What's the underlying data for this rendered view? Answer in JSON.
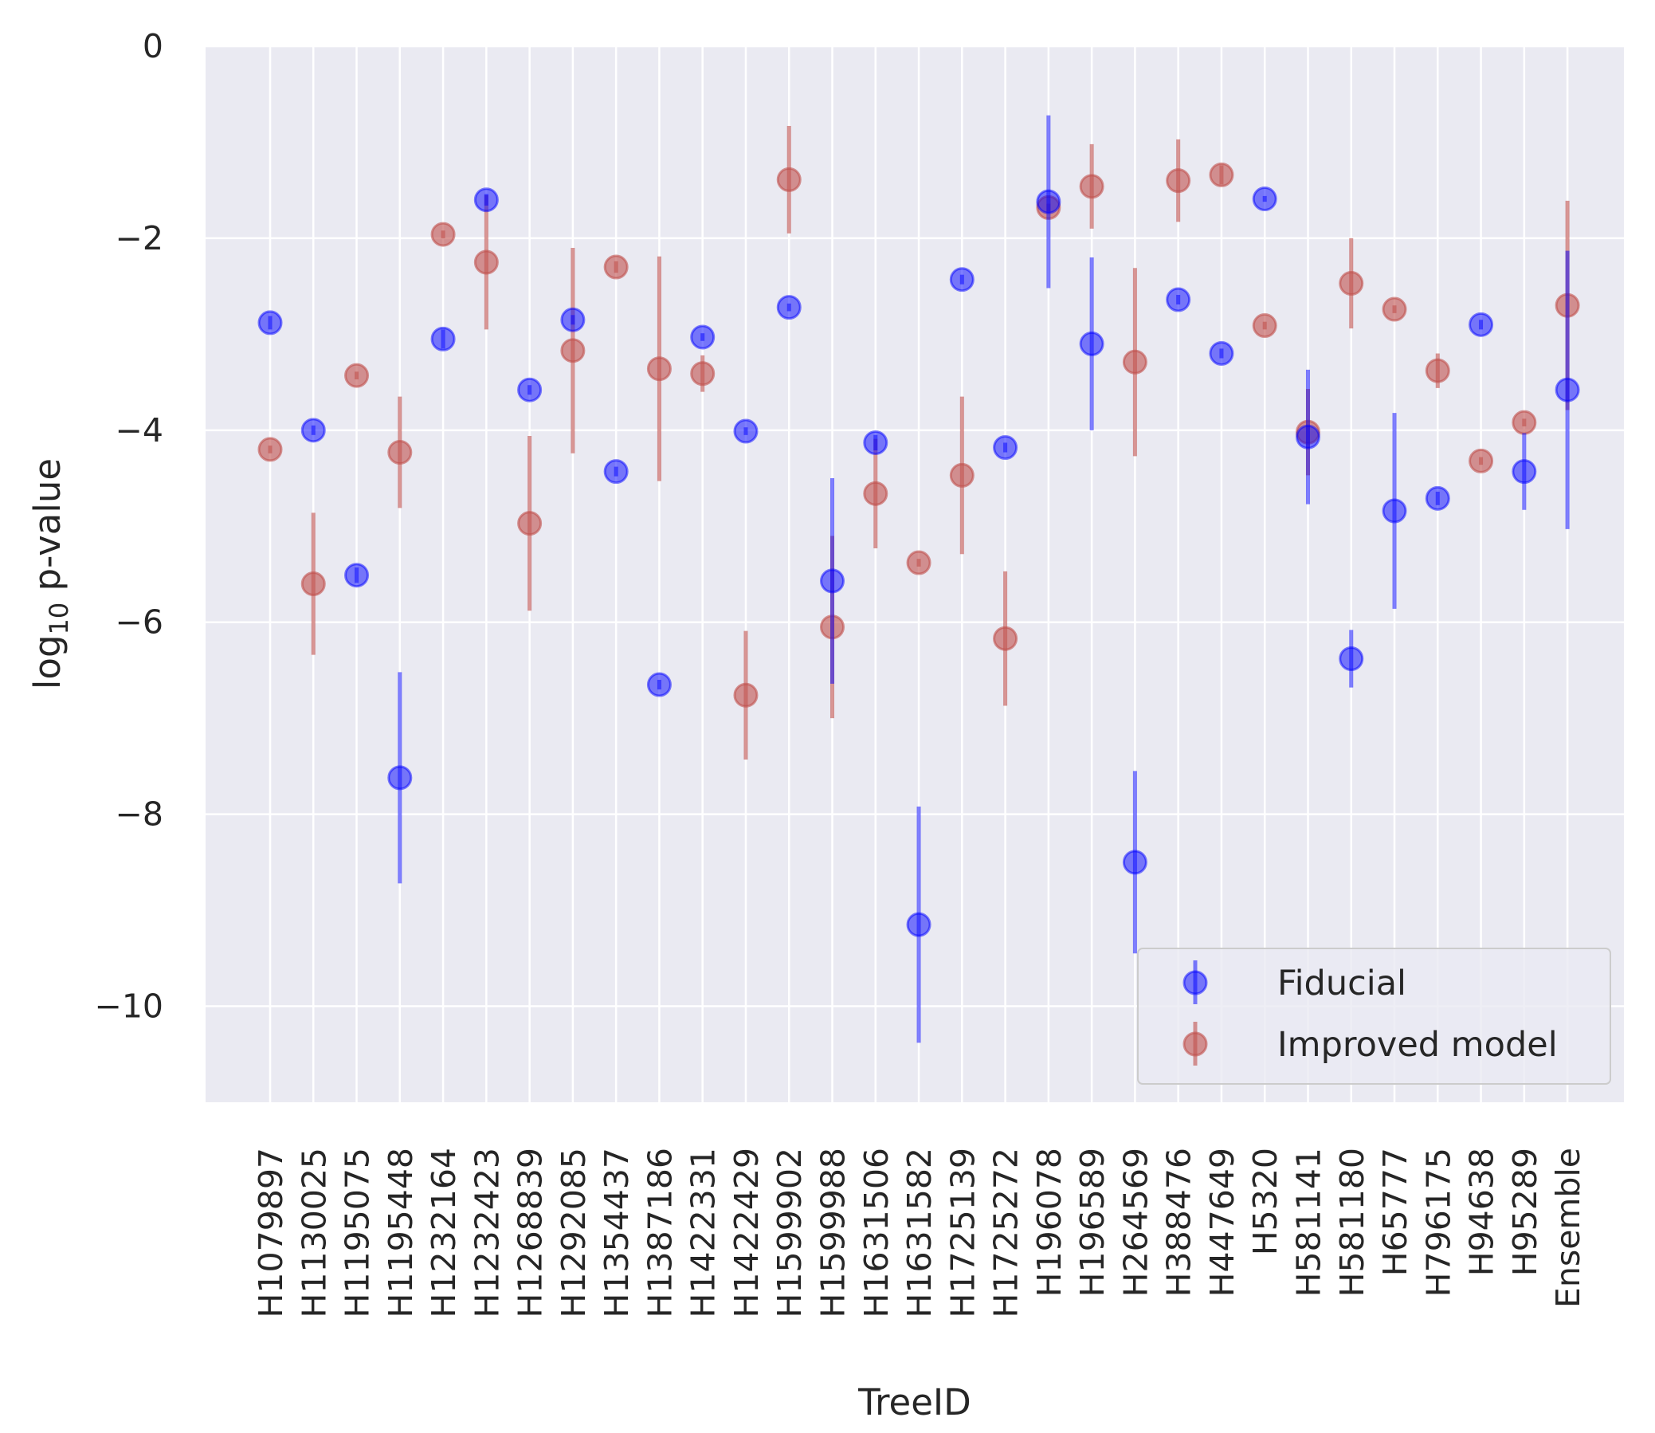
{
  "chart_data": {
    "type": "scatter",
    "title": "",
    "xlabel": "TreeID",
    "ylabel_main": "log",
    "ylabel_sub": "10",
    "ylabel_rest": " p-value",
    "ylim": [
      -11,
      0
    ],
    "yticks": [
      0,
      -2,
      -4,
      -6,
      -8,
      -10
    ],
    "ytick_labels": [
      "0",
      "−2",
      "−4",
      "−6",
      "−8",
      "−10"
    ],
    "legend_position": "lower-right",
    "categories": [
      "H1079897",
      "H1130025",
      "H1195075",
      "H1195448",
      "H1232164",
      "H1232423",
      "H1268839",
      "H1292085",
      "H1354437",
      "H1387186",
      "H1422331",
      "H1422429",
      "H1599902",
      "H1599988",
      "H1631506",
      "H1631582",
      "H1725139",
      "H1725272",
      "H196078",
      "H196589",
      "H264569",
      "H388476",
      "H447649",
      "H5320",
      "H581141",
      "H581180",
      "H65777",
      "H796175",
      "H94638",
      "H95289",
      "Ensemble"
    ],
    "series": [
      {
        "name": "Fiducial",
        "color": "#0000ff",
        "values": [
          -2.88,
          -4.0,
          -5.51,
          -7.62,
          -3.05,
          -1.6,
          -3.58,
          -2.85,
          -4.43,
          -6.65,
          -3.03,
          -4.01,
          -2.72,
          -5.57,
          -4.13,
          -9.15,
          -2.43,
          -4.18,
          -1.62,
          -3.1,
          -8.5,
          -2.64,
          -3.2,
          -1.59,
          -4.07,
          -6.38,
          -4.84,
          -4.71,
          -2.9,
          -4.43,
          -3.58
        ],
        "errors": [
          0.07,
          0.05,
          0.08,
          1.1,
          0.1,
          0.06,
          0.05,
          0.05,
          0.05,
          0.05,
          0.04,
          0.04,
          0.04,
          1.07,
          0.08,
          1.23,
          0.05,
          0.05,
          0.9,
          0.9,
          0.95,
          0.05,
          0.05,
          0.03,
          0.7,
          0.3,
          1.02,
          0.07,
          0.05,
          0.4,
          1.45
        ]
      },
      {
        "name": "Improved model",
        "color": "#c0504d",
        "values": [
          -4.2,
          -5.6,
          -3.43,
          -4.23,
          -1.96,
          -2.25,
          -4.97,
          -3.17,
          -2.3,
          -3.36,
          -3.41,
          -6.76,
          -1.39,
          -6.05,
          -4.66,
          -5.38,
          -4.47,
          -6.17,
          -1.68,
          -1.46,
          -3.29,
          -1.4,
          -1.34,
          -2.91,
          -4.02,
          -2.47,
          -2.74,
          -3.38,
          -4.32,
          -3.92,
          -2.7
        ],
        "errors": [
          0.04,
          0.74,
          0.04,
          0.58,
          0.04,
          0.7,
          0.91,
          1.07,
          0.06,
          1.17,
          0.19,
          0.67,
          0.56,
          0.95,
          0.57,
          0.04,
          0.82,
          0.7,
          0.04,
          0.44,
          0.98,
          0.43,
          0.1,
          0.04,
          0.45,
          0.47,
          0.04,
          0.18,
          0.04,
          0.04,
          1.09
        ]
      }
    ]
  }
}
